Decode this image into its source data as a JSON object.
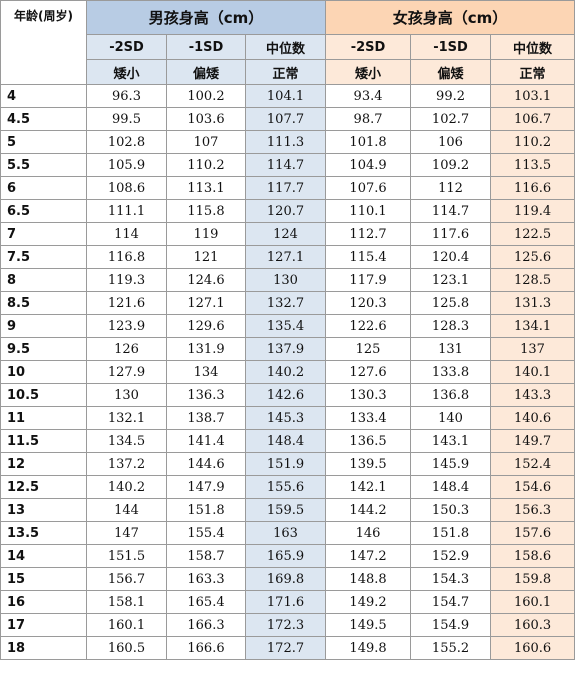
{
  "header": {
    "age_label": "年龄(周岁)",
    "boys_title": "男孩身高（cm）",
    "girls_title": "女孩身高（cm）",
    "boys_sd": [
      "-2SD",
      "-1SD",
      "中位数"
    ],
    "boys_cat": [
      "矮小",
      "偏矮",
      "正常"
    ],
    "girls_sd": [
      "-2SD",
      "-1SD",
      "中位数"
    ],
    "girls_cat": [
      "矮小",
      "偏矮",
      "正常"
    ]
  },
  "rows": [
    {
      "age": "4",
      "b": [
        "96.3",
        "100.2",
        "104.1"
      ],
      "g": [
        "93.4",
        "99.2",
        "103.1"
      ]
    },
    {
      "age": "4.5",
      "b": [
        "99.5",
        "103.6",
        "107.7"
      ],
      "g": [
        "98.7",
        "102.7",
        "106.7"
      ]
    },
    {
      "age": "5",
      "b": [
        "102.8",
        "107",
        "111.3"
      ],
      "g": [
        "101.8",
        "106",
        "110.2"
      ]
    },
    {
      "age": "5.5",
      "b": [
        "105.9",
        "110.2",
        "114.7"
      ],
      "g": [
        "104.9",
        "109.2",
        "113.5"
      ]
    },
    {
      "age": "6",
      "b": [
        "108.6",
        "113.1",
        "117.7"
      ],
      "g": [
        "107.6",
        "112",
        "116.6"
      ]
    },
    {
      "age": "6.5",
      "b": [
        "111.1",
        "115.8",
        "120.7"
      ],
      "g": [
        "110.1",
        "114.7",
        "119.4"
      ]
    },
    {
      "age": "7",
      "b": [
        "114",
        "119",
        "124"
      ],
      "g": [
        "112.7",
        "117.6",
        "122.5"
      ]
    },
    {
      "age": "7.5",
      "b": [
        "116.8",
        "121",
        "127.1"
      ],
      "g": [
        "115.4",
        "120.4",
        "125.6"
      ]
    },
    {
      "age": "8",
      "b": [
        "119.3",
        "124.6",
        "130"
      ],
      "g": [
        "117.9",
        "123.1",
        "128.5"
      ]
    },
    {
      "age": "8.5",
      "b": [
        "121.6",
        "127.1",
        "132.7"
      ],
      "g": [
        "120.3",
        "125.8",
        "131.3"
      ]
    },
    {
      "age": "9",
      "b": [
        "123.9",
        "129.6",
        "135.4"
      ],
      "g": [
        "122.6",
        "128.3",
        "134.1"
      ]
    },
    {
      "age": "9.5",
      "b": [
        "126",
        "131.9",
        "137.9"
      ],
      "g": [
        "125",
        "131",
        "137"
      ]
    },
    {
      "age": "10",
      "b": [
        "127.9",
        "134",
        "140.2"
      ],
      "g": [
        "127.6",
        "133.8",
        "140.1"
      ]
    },
    {
      "age": "10.5",
      "b": [
        "130",
        "136.3",
        "142.6"
      ],
      "g": [
        "130.3",
        "136.8",
        "143.3"
      ]
    },
    {
      "age": "11",
      "b": [
        "132.1",
        "138.7",
        "145.3"
      ],
      "g": [
        "133.4",
        "140",
        "140.6"
      ]
    },
    {
      "age": "11.5",
      "b": [
        "134.5",
        "141.4",
        "148.4"
      ],
      "g": [
        "136.5",
        "143.1",
        "149.7"
      ]
    },
    {
      "age": "12",
      "b": [
        "137.2",
        "144.6",
        "151.9"
      ],
      "g": [
        "139.5",
        "145.9",
        "152.4"
      ]
    },
    {
      "age": "12.5",
      "b": [
        "140.2",
        "147.9",
        "155.6"
      ],
      "g": [
        "142.1",
        "148.4",
        "154.6"
      ]
    },
    {
      "age": "13",
      "b": [
        "144",
        "151.8",
        "159.5"
      ],
      "g": [
        "144.2",
        "150.3",
        "156.3"
      ]
    },
    {
      "age": "13.5",
      "b": [
        "147",
        "155.4",
        "163"
      ],
      "g": [
        "146",
        "151.8",
        "157.6"
      ]
    },
    {
      "age": "14",
      "b": [
        "151.5",
        "158.7",
        "165.9"
      ],
      "g": [
        "147.2",
        "152.9",
        "158.6"
      ]
    },
    {
      "age": "15",
      "b": [
        "156.7",
        "163.3",
        "169.8"
      ],
      "g": [
        "148.8",
        "154.3",
        "159.8"
      ]
    },
    {
      "age": "16",
      "b": [
        "158.1",
        "165.4",
        "171.6"
      ],
      "g": [
        "149.2",
        "154.7",
        "160.1"
      ]
    },
    {
      "age": "17",
      "b": [
        "160.1",
        "166.3",
        "172.3"
      ],
      "g": [
        "149.5",
        "154.9",
        "160.3"
      ]
    },
    {
      "age": "18",
      "b": [
        "160.5",
        "166.6",
        "172.7"
      ],
      "g": [
        "149.8",
        "155.2",
        "160.6"
      ]
    }
  ]
}
